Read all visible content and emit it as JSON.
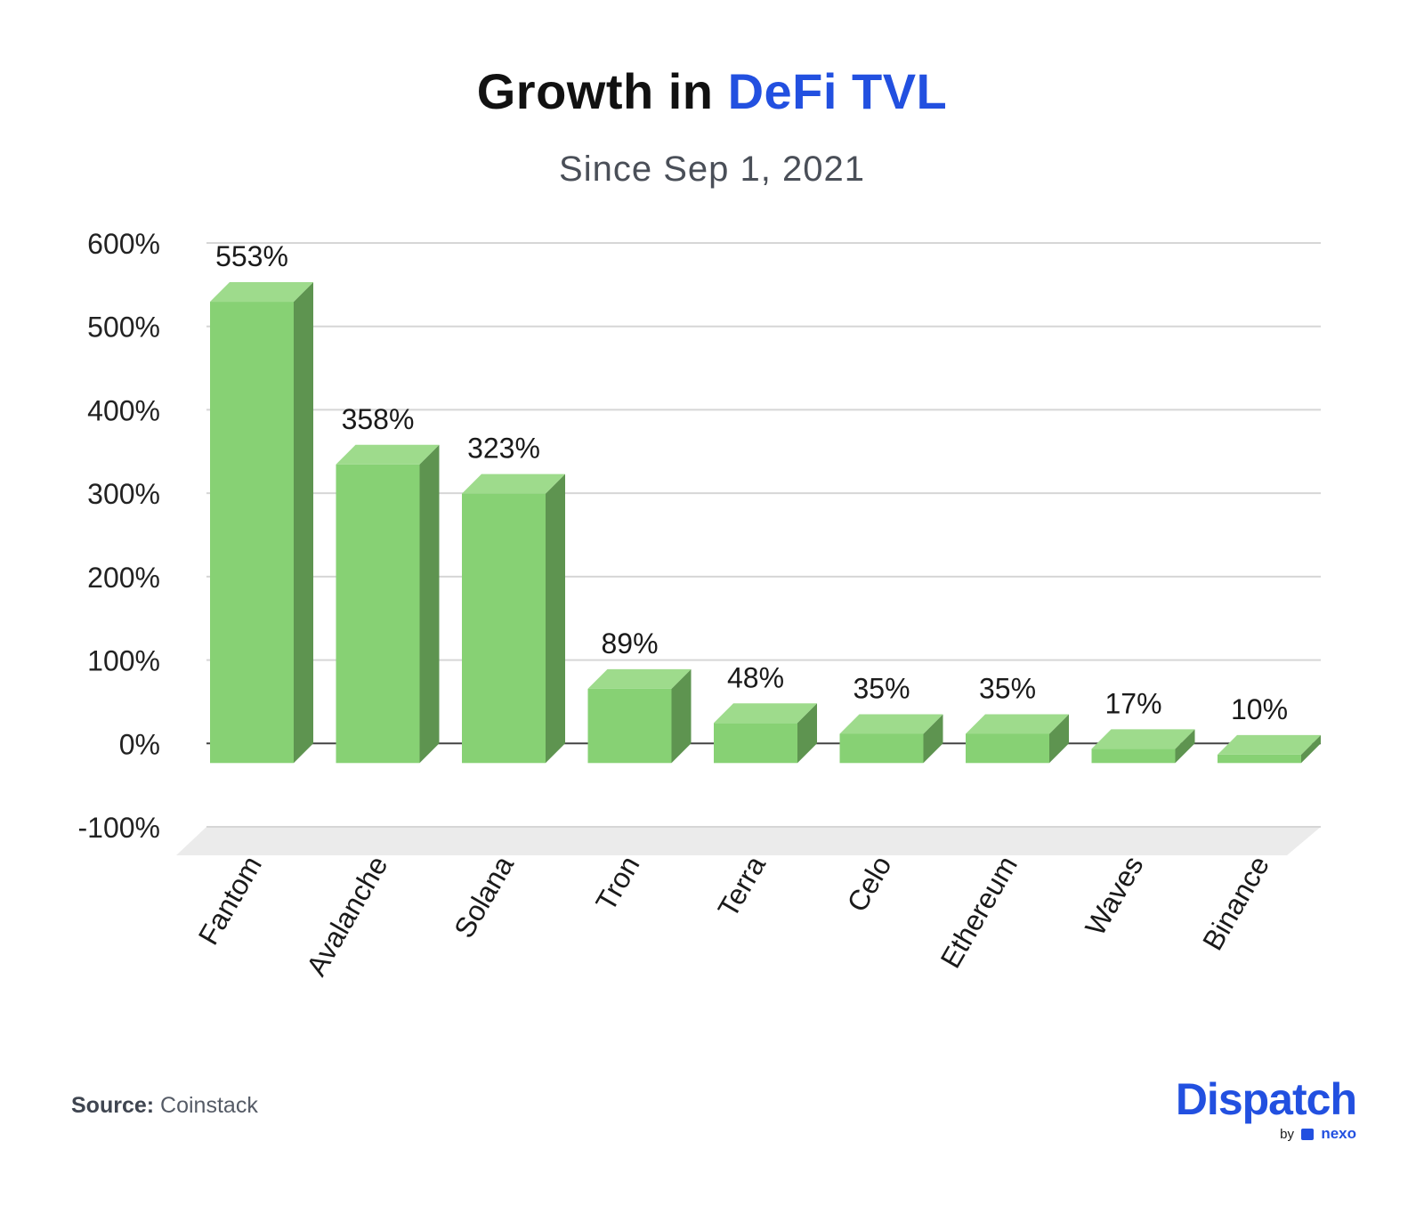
{
  "header": {
    "title_prefix": "Growth in ",
    "title_accent": "DeFi TVL",
    "subtitle": "Since Sep 1, 2021"
  },
  "footer": {
    "source_label": "Source:",
    "source_value": "Coinstack",
    "brand_name": "Dispatch",
    "brand_by": "by",
    "brand_partner": "nexo"
  },
  "colors": {
    "accent": "#2250e0",
    "bar_front": "#87d174",
    "bar_top": "#9edb8c",
    "bar_side": "#5e9450",
    "grid": "#d6d6d6",
    "zero_line": "#444444"
  },
  "chart_data": {
    "type": "bar",
    "style": "3d",
    "categories": [
      "Fantom",
      "Avalanche",
      "Solana",
      "Tron",
      "Terra",
      "Celo",
      "Ethereum",
      "Waves",
      "Binance"
    ],
    "values": [
      553,
      358,
      323,
      89,
      48,
      35,
      35,
      17,
      10
    ],
    "data_labels": [
      "553%",
      "358%",
      "323%",
      "89%",
      "48%",
      "35%",
      "35%",
      "17%",
      "10%"
    ],
    "ylim": [
      -100,
      600
    ],
    "yticks": [
      600,
      500,
      400,
      300,
      200,
      100,
      0,
      -100
    ],
    "ytick_labels": [
      "600%",
      "500%",
      "400%",
      "300%",
      "200%",
      "100%",
      "0%",
      "-100%"
    ],
    "grid": true,
    "legend": "none"
  }
}
